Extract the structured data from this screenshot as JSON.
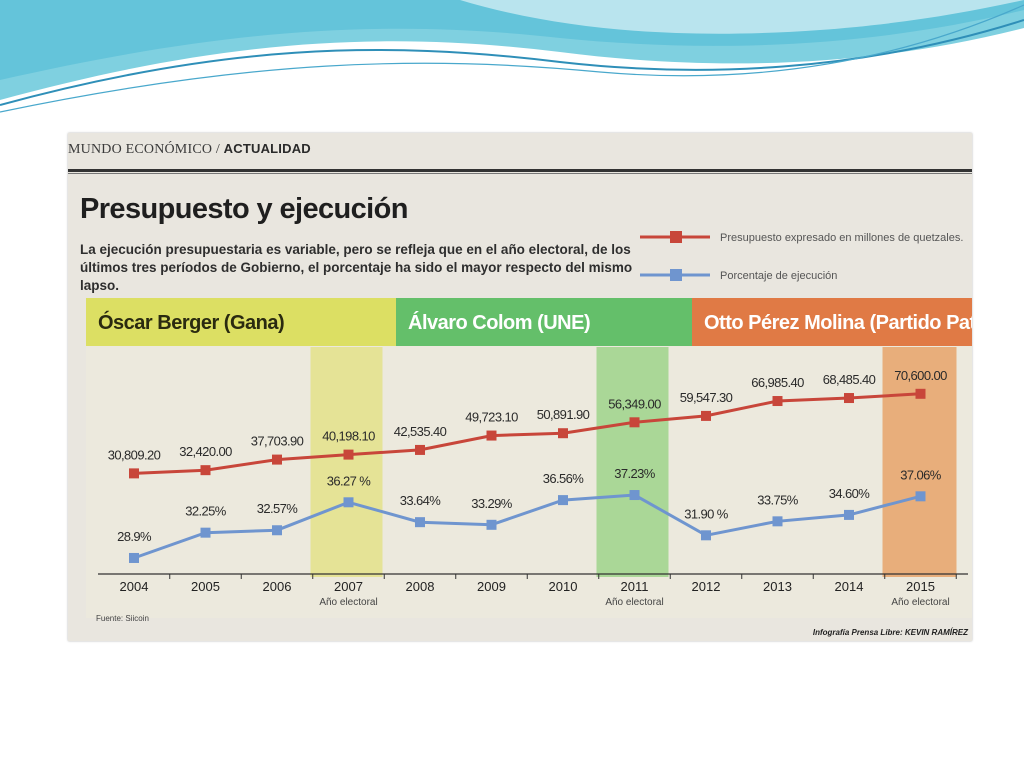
{
  "header": {
    "section": "MUNDO ECONÓMICO",
    "subsection": "ACTUALIDAD"
  },
  "article": {
    "title": "Presupuesto y ejecución",
    "subtitle": "La ejecución presupuestaria es variable, pero se refleja que en el año electoral, de los últimos tres períodos de Gobierno, el porcentaje ha sido el mayor respecto del mismo lapso.",
    "source": "Fuente: Siicoin",
    "credit": "Infografía Prensa Libre: KEVIN RAMÍREZ"
  },
  "colors": {
    "budget_line": "#c8463a",
    "execution_line": "#6f95cf",
    "berger_band": "#dcdf63",
    "colom_band": "#64bf6a",
    "perez_band": "#e07a45",
    "electoral_2007": "#e4e28a",
    "electoral_2011": "#9fd38b",
    "electoral_2015": "#e7a36a"
  },
  "chart_data": {
    "type": "line",
    "categories": [
      "2004",
      "2005",
      "2006",
      "2007",
      "2008",
      "2009",
      "2010",
      "2011",
      "2012",
      "2013",
      "2014",
      "2015"
    ],
    "electoral_note": "Año electoral",
    "electoral_years": [
      "2007",
      "2011",
      "2015"
    ],
    "series": [
      {
        "name": "Presupuesto expresado en millones de quetzales.",
        "values": [
          30809.2,
          32420.0,
          37703.9,
          40198.1,
          42535.4,
          49723.1,
          50891.9,
          56349.0,
          59547.3,
          66985.4,
          68485.4,
          70600.0
        ],
        "labels": [
          "30,809.20",
          "32,420.00",
          "37,703.90",
          "40,198.10",
          "42,535.40",
          "49,723.10",
          "50,891.90",
          "56,349.00",
          "59,547.30",
          "66,985.40",
          "68,485.40",
          "70,600.00"
        ],
        "color": "#c8463a"
      },
      {
        "name": "Porcentaje de ejecución",
        "values": [
          28.9,
          32.25,
          32.57,
          36.27,
          33.64,
          33.29,
          36.56,
          37.23,
          31.9,
          33.75,
          34.6,
          37.06
        ],
        "labels": [
          "28.9%",
          "32.25%",
          "32.57%",
          "36.27 %",
          "33.64%",
          "33.29%",
          "36.56%",
          "37.23%",
          "31.90 %",
          "33.75%",
          "34.60%",
          "37.06%"
        ],
        "color": "#6f95cf"
      }
    ],
    "periods": [
      {
        "name": "Óscar Berger (Gana)",
        "years": [
          "2004",
          "2005",
          "2006",
          "2007"
        ]
      },
      {
        "name": "Álvaro Colom (UNE)",
        "years": [
          "2008",
          "2009",
          "2010",
          "2011"
        ]
      },
      {
        "name": "Otto Pérez Molina (Partido Patriota)",
        "years": [
          "2012",
          "2013",
          "2014",
          "2015"
        ]
      }
    ],
    "legend_position": "top-right",
    "grid": false
  }
}
